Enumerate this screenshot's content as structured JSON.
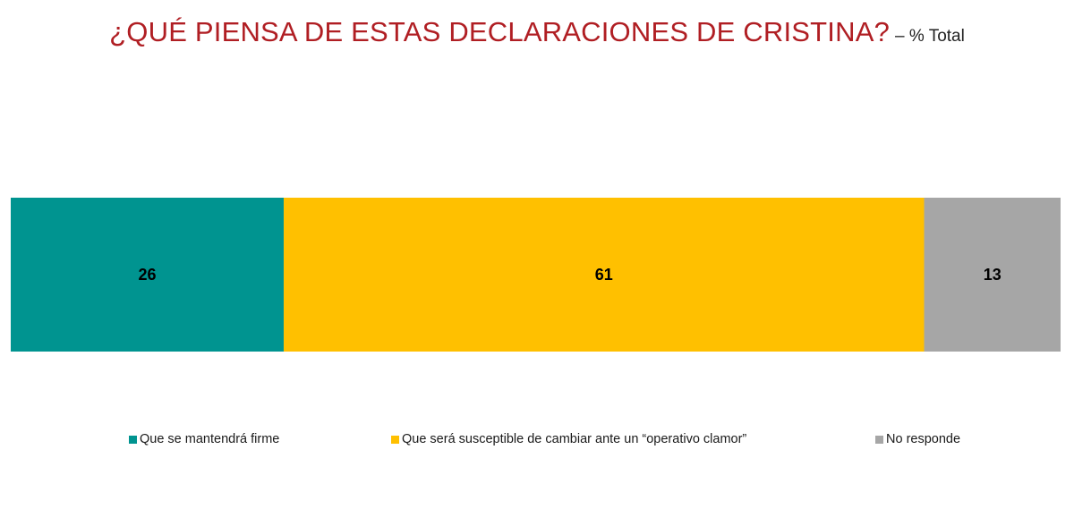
{
  "title": "¿QUÉ PIENSA DE ESTAS DECLARACIONES DE CRISTINA?",
  "subtitle": "– % Total",
  "chart_data": {
    "type": "bar",
    "orientation": "horizontal-stacked-100",
    "categories": [
      ""
    ],
    "series": [
      {
        "name": "Que se mantendrá firme",
        "values": [
          26
        ],
        "color": "#009490"
      },
      {
        "name": "Que será susceptible de cambiar ante un “operativo clamor”",
        "values": [
          61
        ],
        "color": "#ffc000"
      },
      {
        "name": "No responde",
        "values": [
          13
        ],
        "color": "#a6a6a6"
      }
    ],
    "xlim": [
      0,
      100
    ],
    "grid": false,
    "legend_position": "bottom"
  }
}
